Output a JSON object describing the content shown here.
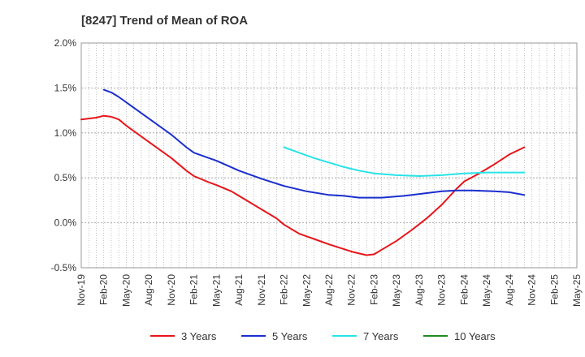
{
  "chart_data": {
    "type": "line",
    "title": "[8247]  Trend of Mean of ROA",
    "xlabel": "",
    "ylabel": "",
    "ylim": [
      -0.5,
      2.0
    ],
    "y_ticks": [
      "2.0%",
      "1.5%",
      "1.0%",
      "0.5%",
      "0.0%",
      "-0.5%"
    ],
    "y_tick_values": [
      2.0,
      1.5,
      1.0,
      0.5,
      0.0,
      -0.5
    ],
    "x_ticks": [
      "Nov-19",
      "Feb-20",
      "May-20",
      "Aug-20",
      "Nov-20",
      "Feb-21",
      "May-21",
      "Aug-21",
      "Nov-21",
      "Feb-22",
      "May-22",
      "Aug-22",
      "Nov-22",
      "Feb-23",
      "May-23",
      "Aug-23",
      "Nov-23",
      "Feb-24",
      "May-24",
      "Aug-24",
      "Nov-24",
      "Feb-25",
      "May-25"
    ],
    "x_range_months": [
      0,
      66
    ],
    "grid": true,
    "legend_position": "bottom",
    "series": [
      {
        "name": "3 Years",
        "color": "#e8151b",
        "points": [
          [
            0,
            1.15
          ],
          [
            2,
            1.17
          ],
          [
            3,
            1.19
          ],
          [
            4,
            1.18
          ],
          [
            5,
            1.15
          ],
          [
            6,
            1.08
          ],
          [
            9,
            0.9
          ],
          [
            12,
            0.72
          ],
          [
            14,
            0.58
          ],
          [
            15,
            0.52
          ],
          [
            17,
            0.45
          ],
          [
            18,
            0.42
          ],
          [
            20,
            0.35
          ],
          [
            21,
            0.3
          ],
          [
            24,
            0.15
          ],
          [
            26,
            0.05
          ],
          [
            27,
            -0.02
          ],
          [
            29,
            -0.12
          ],
          [
            31,
            -0.18
          ],
          [
            33,
            -0.24
          ],
          [
            36,
            -0.32
          ],
          [
            38,
            -0.36
          ],
          [
            39,
            -0.35
          ],
          [
            40,
            -0.3
          ],
          [
            42,
            -0.2
          ],
          [
            44,
            -0.08
          ],
          [
            46,
            0.05
          ],
          [
            48,
            0.2
          ],
          [
            50,
            0.38
          ],
          [
            51,
            0.46
          ],
          [
            53,
            0.55
          ],
          [
            55,
            0.65
          ],
          [
            57,
            0.76
          ],
          [
            59,
            0.84
          ]
        ]
      },
      {
        "name": "5 Years",
        "color": "#1a2ecf",
        "points": [
          [
            3,
            1.48
          ],
          [
            4,
            1.45
          ],
          [
            5,
            1.4
          ],
          [
            8,
            1.22
          ],
          [
            10,
            1.1
          ],
          [
            12,
            0.98
          ],
          [
            14,
            0.84
          ],
          [
            15,
            0.78
          ],
          [
            17,
            0.72
          ],
          [
            18,
            0.69
          ],
          [
            21,
            0.58
          ],
          [
            24,
            0.49
          ],
          [
            27,
            0.41
          ],
          [
            30,
            0.35
          ],
          [
            33,
            0.31
          ],
          [
            35,
            0.3
          ],
          [
            37,
            0.28
          ],
          [
            40,
            0.28
          ],
          [
            43,
            0.3
          ],
          [
            46,
            0.33
          ],
          [
            48,
            0.35
          ],
          [
            50,
            0.36
          ],
          [
            52,
            0.36
          ],
          [
            55,
            0.35
          ],
          [
            57,
            0.34
          ],
          [
            59,
            0.31
          ]
        ]
      },
      {
        "name": "7 Years",
        "color": "#27e3e8",
        "points": [
          [
            27,
            0.84
          ],
          [
            29,
            0.78
          ],
          [
            31,
            0.72
          ],
          [
            33,
            0.67
          ],
          [
            35,
            0.62
          ],
          [
            37,
            0.58
          ],
          [
            39,
            0.55
          ],
          [
            42,
            0.53
          ],
          [
            45,
            0.52
          ],
          [
            48,
            0.53
          ],
          [
            51,
            0.55
          ],
          [
            54,
            0.56
          ],
          [
            57,
            0.56
          ],
          [
            59,
            0.56
          ]
        ]
      },
      {
        "name": "10 Years",
        "color": "#1f8a1f",
        "points": []
      }
    ]
  }
}
